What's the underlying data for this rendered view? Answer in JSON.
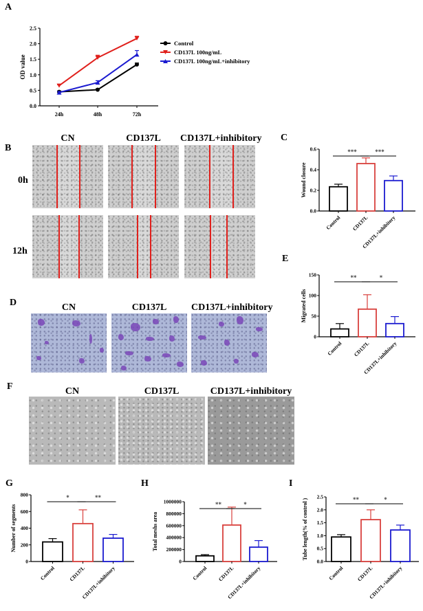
{
  "panels": {
    "A": "A",
    "B": "B",
    "C": "C",
    "D": "D",
    "E": "E",
    "F": "F",
    "G": "G",
    "H": "H",
    "I": "I"
  },
  "image_labels": {
    "cn": "CN",
    "cd137l": "CD137L",
    "inhib": "CD137L+inhibitory",
    "t0": "0h",
    "t12": "12h"
  },
  "colors": {
    "control": "#000000",
    "cd137l": "#e0201c",
    "cd137l_bar": "#d9403c",
    "inhib": "#1a1ad0"
  },
  "chart_data": [
    {
      "id": "A",
      "type": "line",
      "title": "",
      "xlabel": "",
      "ylabel": "OD value",
      "categories": [
        "24h",
        "48h",
        "72h"
      ],
      "ylim": [
        0,
        2.5
      ],
      "yticks": [
        "0.0",
        "0.5",
        "1.0",
        "1.5",
        "2.0",
        "2.5"
      ],
      "grid": false,
      "legend_position": "right",
      "series": [
        {
          "name": "Control",
          "marker": "circle",
          "values": [
            0.45,
            0.52,
            1.33
          ],
          "errors": [
            0.03,
            0.03,
            0.05
          ]
        },
        {
          "name": "CD137L 100ng/mL",
          "marker": "triangle-down",
          "values": [
            0.65,
            1.55,
            2.17
          ],
          "errors": [
            0.03,
            0.08,
            0.07
          ]
        },
        {
          "name": "CD137L 100ng/mL+inhibitory",
          "marker": "triangle-up",
          "values": [
            0.43,
            0.75,
            1.65
          ],
          "errors": [
            0.03,
            0.06,
            0.13
          ]
        }
      ]
    },
    {
      "id": "C",
      "type": "bar",
      "ylabel": "Wound closure",
      "categories": [
        "Control",
        "CD137L",
        "CD137L+inhibitory"
      ],
      "values": [
        0.235,
        0.46,
        0.295
      ],
      "errors": [
        0.025,
        0.055,
        0.045
      ],
      "ylim": [
        0,
        0.6
      ],
      "yticks": [
        "0.0",
        "0.2",
        "0.4",
        "0.6"
      ],
      "significance": [
        {
          "from": 0,
          "to": 1,
          "label": "***"
        },
        {
          "from": 1,
          "to": 2,
          "label": "***"
        }
      ]
    },
    {
      "id": "E",
      "type": "bar",
      "ylabel": "Migrated cells",
      "categories": [
        "Control",
        "CD137L",
        "CD137L+inhibitory"
      ],
      "values": [
        19,
        67,
        32
      ],
      "errors": [
        13,
        35,
        17
      ],
      "ylim": [
        0,
        150
      ],
      "yticks": [
        "0",
        "50",
        "100",
        "150"
      ],
      "significance": [
        {
          "from": 0,
          "to": 1,
          "label": "**"
        },
        {
          "from": 1,
          "to": 2,
          "label": "*"
        }
      ]
    },
    {
      "id": "G",
      "type": "bar",
      "ylabel": "Number of segments",
      "categories": [
        "Control",
        "CD137L",
        "CD137L+inhibitory"
      ],
      "values": [
        235,
        455,
        280
      ],
      "errors": [
        40,
        165,
        45
      ],
      "ylim": [
        0,
        800
      ],
      "yticks": [
        "0",
        "200",
        "400",
        "600",
        "800"
      ],
      "significance": [
        {
          "from": 0,
          "to": 1,
          "label": "*"
        },
        {
          "from": 1,
          "to": 2,
          "label": "**"
        }
      ]
    },
    {
      "id": "H",
      "type": "bar",
      "ylabel": "Total meshs area",
      "categories": [
        "Control",
        "CD137L",
        "CD137L+inhibitory"
      ],
      "values": [
        95000,
        610000,
        240000
      ],
      "errors": [
        20000,
        300000,
        110000
      ],
      "ylim": [
        0,
        1000000
      ],
      "yticks": [
        "0",
        "200000",
        "400000",
        "600000",
        "800000",
        "1000000"
      ],
      "significance": [
        {
          "from": 0,
          "to": 1,
          "label": "**"
        },
        {
          "from": 1,
          "to": 2,
          "label": "*"
        }
      ]
    },
    {
      "id": "I",
      "type": "bar",
      "ylabel": "Tube length(% of control )",
      "categories": [
        "Control",
        "CD137L",
        "CD137L+inhibitory"
      ],
      "values": [
        0.95,
        1.62,
        1.22
      ],
      "errors": [
        0.09,
        0.38,
        0.19
      ],
      "ylim": [
        0,
        2.5
      ],
      "yticks": [
        "0.0",
        "0.5",
        "1.0",
        "1.5",
        "2.0",
        "2.5"
      ],
      "significance": [
        {
          "from": 0,
          "to": 1,
          "label": "**"
        },
        {
          "from": 1,
          "to": 2,
          "label": "*"
        }
      ]
    }
  ]
}
